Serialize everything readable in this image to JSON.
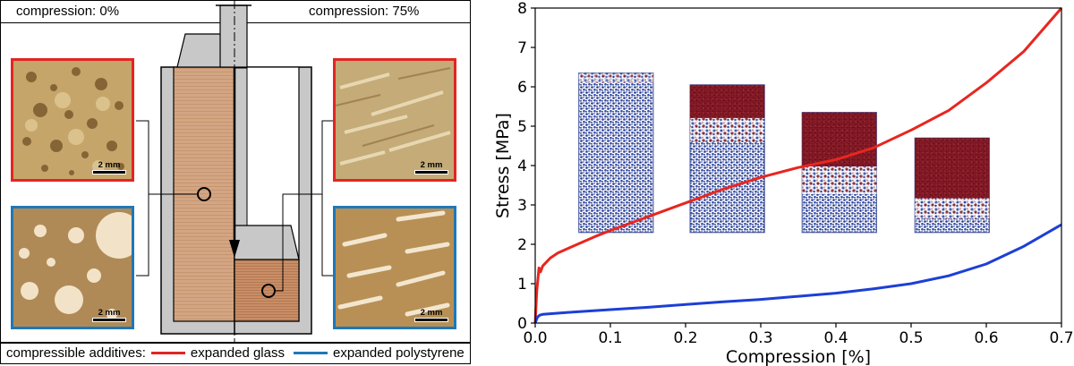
{
  "schematic": {
    "label_left": "compression: 0%",
    "label_right": "compression: 75%",
    "scale_label": "2 mm",
    "legend": {
      "prefix": "compressible additives:",
      "items": [
        {
          "label": "expanded glass",
          "color": "#e32522"
        },
        {
          "label": "expanded polystyrene",
          "color": "#1e78b8"
        }
      ]
    }
  },
  "chart_data": {
    "type": "line",
    "xlabel": "Compression [%]",
    "ylabel": "Stress [MPa]",
    "xlim": [
      0.0,
      0.7
    ],
    "ylim": [
      0,
      8
    ],
    "x_ticks": [
      "0.0",
      "0.1",
      "0.2",
      "0.3",
      "0.4",
      "0.5",
      "0.6",
      "0.7"
    ],
    "y_ticks": [
      "0",
      "1",
      "2",
      "3",
      "4",
      "5",
      "6",
      "7",
      "8"
    ],
    "grid": false,
    "series": [
      {
        "color": "#e8261f",
        "x": [
          0.0,
          0.002,
          0.005,
          0.007,
          0.01,
          0.015,
          0.02,
          0.03,
          0.05,
          0.08,
          0.1,
          0.15,
          0.2,
          0.25,
          0.3,
          0.35,
          0.4,
          0.45,
          0.5,
          0.55,
          0.6,
          0.65,
          0.7
        ],
        "y": [
          0.0,
          0.8,
          1.4,
          1.3,
          1.45,
          1.55,
          1.65,
          1.78,
          1.95,
          2.2,
          2.35,
          2.7,
          3.05,
          3.4,
          3.7,
          3.95,
          4.15,
          4.45,
          4.9,
          5.4,
          6.1,
          6.9,
          8.0
        ]
      },
      {
        "color": "#1c3fd6",
        "x": [
          0.0,
          0.003,
          0.006,
          0.01,
          0.05,
          0.1,
          0.15,
          0.2,
          0.25,
          0.3,
          0.35,
          0.4,
          0.45,
          0.5,
          0.55,
          0.6,
          0.65,
          0.7
        ],
        "y": [
          0.0,
          0.15,
          0.2,
          0.22,
          0.28,
          0.34,
          0.4,
          0.47,
          0.54,
          0.6,
          0.68,
          0.76,
          0.87,
          1.0,
          1.2,
          1.5,
          1.95,
          2.5
        ]
      }
    ],
    "insets": [
      {
        "x": [
          0.058,
          0.157
        ],
        "y": [
          2.3,
          6.35
        ],
        "compression": 0.0
      },
      {
        "x": [
          0.206,
          0.305
        ],
        "y": [
          2.3,
          6.05
        ],
        "compression": 0.3
      },
      {
        "x": [
          0.355,
          0.454
        ],
        "y": [
          2.3,
          5.35
        ],
        "compression": 0.6
      },
      {
        "x": [
          0.505,
          0.604
        ],
        "y": [
          2.3,
          4.7
        ],
        "compression": 0.85
      }
    ]
  }
}
